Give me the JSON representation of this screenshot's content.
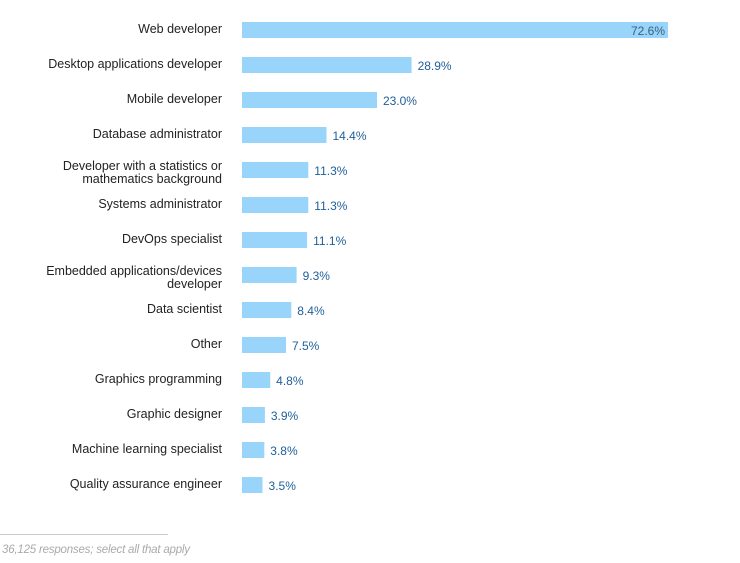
{
  "chart_data": {
    "type": "bar",
    "orientation": "horizontal",
    "categories": [
      "Web developer",
      "Desktop applications developer",
      "Mobile developer",
      "Database administrator",
      "Developer with a statistics or\nmathematics background",
      "Systems administrator",
      "DevOps specialist",
      "Embedded applications/devices\ndeveloper",
      "Data scientist",
      "Other",
      "Graphics programming",
      "Graphic designer",
      "Machine learning specialist",
      "Quality assurance engineer"
    ],
    "values": [
      72.6,
      28.9,
      23.0,
      14.4,
      11.3,
      11.3,
      11.1,
      9.3,
      8.4,
      7.5,
      4.8,
      3.9,
      3.8,
      3.5
    ],
    "value_labels": [
      "72.6%",
      "28.9%",
      "23.0%",
      "14.4%",
      "11.3%",
      "11.3%",
      "11.1%",
      "9.3%",
      "8.4%",
      "7.5%",
      "4.8%",
      "3.9%",
      "3.8%",
      "3.5%"
    ],
    "xlim": [
      0,
      72.6
    ],
    "grid": false,
    "colors": {
      "bar": "#99d4fa",
      "value_text": "#1f5f99",
      "value_text_inside": "#3b5f80"
    }
  },
  "footnote": "36,125 responses; select all that apply"
}
